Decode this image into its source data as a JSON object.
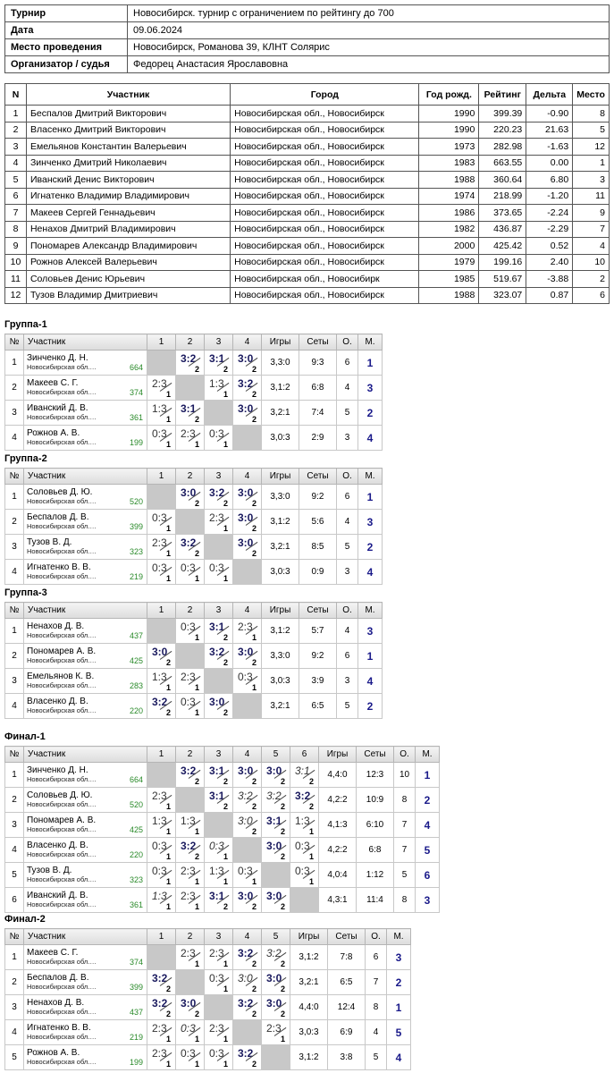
{
  "info": [
    {
      "label": "Турнир",
      "value": "Новосибирск. турнир с ограничением по рейтингу до 700"
    },
    {
      "label": "Дата",
      "value": "09.06.2024"
    },
    {
      "label": "Место проведения",
      "value": "Новосибирск, Романова 39, КЛНТ Солярис"
    },
    {
      "label": "Организатор / судья",
      "value": "Федорец Анастасия Ярославовна"
    }
  ],
  "participants": {
    "headers": [
      "N",
      "Участник",
      "Город",
      "Год рожд.",
      "Рейтинг",
      "Дельта",
      "Место"
    ],
    "rows": [
      [
        "1",
        "Беспалов Дмитрий Викторович",
        "Новосибирская обл., Новосибирск",
        "1990",
        "399.39",
        "-0.90",
        "8"
      ],
      [
        "2",
        "Власенко Дмитрий Викторович",
        "Новосибирская обл., Новосибирск",
        "1990",
        "220.23",
        "21.63",
        "5"
      ],
      [
        "3",
        "Емельянов Константин Валерьевич",
        "Новосибирская обл., Новосибирск",
        "1973",
        "282.98",
        "-1.63",
        "12"
      ],
      [
        "4",
        "Зинченко Дмитрий Николаевич",
        "Новосибирская обл., Новосибирск",
        "1983",
        "663.55",
        "0.00",
        "1"
      ],
      [
        "5",
        "Иванский Денис Викторович",
        "Новосибирская обл., Новосибирск",
        "1988",
        "360.64",
        "6.80",
        "3"
      ],
      [
        "6",
        "Игнатенко Владимир Владимирович",
        "Новосибирская обл., Новосибирск",
        "1974",
        "218.99",
        "-1.20",
        "11"
      ],
      [
        "7",
        "Макеев Сергей Геннадьевич",
        "Новосибирская обл., Новосибирск",
        "1986",
        "373.65",
        "-2.24",
        "9"
      ],
      [
        "8",
        "Ненахов Дмитрий Владимирович",
        "Новосибирская обл., Новосибирск",
        "1982",
        "436.87",
        "-2.29",
        "7"
      ],
      [
        "9",
        "Пономарев Александр Владимирович",
        "Новосибирская обл., Новосибирск",
        "2000",
        "425.42",
        "0.52",
        "4"
      ],
      [
        "10",
        "Рожнов Алексей Валерьевич",
        "Новосибирская обл., Новосибирск",
        "1979",
        "199.16",
        "2.40",
        "10"
      ],
      [
        "11",
        "Соловьев Денис Юрьевич",
        "Новосибирская обл., Новосибирк",
        "1985",
        "519.67",
        "-3.88",
        "2"
      ],
      [
        "12",
        "Тузов Владимир Дмитриевич",
        "Новосибирская обл., Новосибирск",
        "1988",
        "323.07",
        "0.87",
        "6"
      ]
    ]
  },
  "groups": [
    {
      "title": "Группа-1",
      "headers": [
        "№",
        "Участник",
        "1",
        "2",
        "3",
        "4",
        "Игры",
        "Сеты",
        "О.",
        "М."
      ],
      "rows": [
        {
          "num": "1",
          "name": "Зинченко Д. Н.",
          "city": "Новосибирская обл.…",
          "rating": "664",
          "cells": [
            null,
            {
              "s": "3:2",
              "p": "2",
              "t": "w"
            },
            {
              "s": "3:1",
              "p": "2",
              "t": "w"
            },
            {
              "s": "3:0",
              "p": "2",
              "t": "w"
            }
          ],
          "games": "3,3:0",
          "sets": "9:3",
          "pts": "6",
          "place": "1"
        },
        {
          "num": "2",
          "name": "Макеев С. Г.",
          "city": "Новосибирская обл.…",
          "rating": "374",
          "cells": [
            {
              "s": "2:3",
              "p": "1",
              "t": "l"
            },
            null,
            {
              "s": "1:3",
              "p": "1",
              "t": "l"
            },
            {
              "s": "3:2",
              "p": "2",
              "t": "w"
            }
          ],
          "games": "3,1:2",
          "sets": "6:8",
          "pts": "4",
          "place": "3"
        },
        {
          "num": "3",
          "name": "Иванский Д. В.",
          "city": "Новосибирская обл.…",
          "rating": "361",
          "cells": [
            {
              "s": "1:3",
              "p": "1",
              "t": "l"
            },
            {
              "s": "3:1",
              "p": "2",
              "t": "w"
            },
            null,
            {
              "s": "3:0",
              "p": "2",
              "t": "w"
            }
          ],
          "games": "3,2:1",
          "sets": "7:4",
          "pts": "5",
          "place": "2"
        },
        {
          "num": "4",
          "name": "Рожнов А. В.",
          "city": "Новосибирская обл.…",
          "rating": "199",
          "cells": [
            {
              "s": "0:3",
              "p": "1",
              "t": "l"
            },
            {
              "s": "2:3",
              "p": "1",
              "t": "l"
            },
            {
              "s": "0:3",
              "p": "1",
              "t": "l"
            },
            null
          ],
          "games": "3,0:3",
          "sets": "2:9",
          "pts": "3",
          "place": "4"
        }
      ]
    },
    {
      "title": "Группа-2",
      "headers": [
        "№",
        "Участник",
        "1",
        "2",
        "3",
        "4",
        "Игры",
        "Сеты",
        "О.",
        "М."
      ],
      "rows": [
        {
          "num": "1",
          "name": "Соловьев Д. Ю.",
          "city": "Новосибирская обл.…",
          "rating": "520",
          "cells": [
            null,
            {
              "s": "3:0",
              "p": "2",
              "t": "w"
            },
            {
              "s": "3:2",
              "p": "2",
              "t": "w"
            },
            {
              "s": "3:0",
              "p": "2",
              "t": "w"
            }
          ],
          "games": "3,3:0",
          "sets": "9:2",
          "pts": "6",
          "place": "1"
        },
        {
          "num": "2",
          "name": "Беспалов Д. В.",
          "city": "Новосибирская обл.…",
          "rating": "399",
          "cells": [
            {
              "s": "0:3",
              "p": "1",
              "t": "l"
            },
            null,
            {
              "s": "2:3",
              "p": "1",
              "t": "l"
            },
            {
              "s": "3:0",
              "p": "2",
              "t": "w"
            }
          ],
          "games": "3,1:2",
          "sets": "5:6",
          "pts": "4",
          "place": "3"
        },
        {
          "num": "3",
          "name": "Тузов В. Д.",
          "city": "Новосибирская обл.…",
          "rating": "323",
          "cells": [
            {
              "s": "2:3",
              "p": "1",
              "t": "l"
            },
            {
              "s": "3:2",
              "p": "2",
              "t": "w"
            },
            null,
            {
              "s": "3:0",
              "p": "2",
              "t": "w"
            }
          ],
          "games": "3,2:1",
          "sets": "8:5",
          "pts": "5",
          "place": "2"
        },
        {
          "num": "4",
          "name": "Игнатенко В. В.",
          "city": "Новосибирская обл.…",
          "rating": "219",
          "cells": [
            {
              "s": "0:3",
              "p": "1",
              "t": "l"
            },
            {
              "s": "0:3",
              "p": "1",
              "t": "l"
            },
            {
              "s": "0:3",
              "p": "1",
              "t": "l"
            },
            null
          ],
          "games": "3,0:3",
          "sets": "0:9",
          "pts": "3",
          "place": "4"
        }
      ]
    },
    {
      "title": "Группа-3",
      "headers": [
        "№",
        "Участник",
        "1",
        "2",
        "3",
        "4",
        "Игры",
        "Сеты",
        "О.",
        "М."
      ],
      "rows": [
        {
          "num": "1",
          "name": "Ненахов Д. В.",
          "city": "Новосибирская обл.…",
          "rating": "437",
          "cells": [
            null,
            {
              "s": "0:3",
              "p": "1",
              "t": "l"
            },
            {
              "s": "3:1",
              "p": "2",
              "t": "w"
            },
            {
              "s": "2:3",
              "p": "1",
              "t": "l"
            }
          ],
          "games": "3,1:2",
          "sets": "5:7",
          "pts": "4",
          "place": "3"
        },
        {
          "num": "2",
          "name": "Пономарев А. В.",
          "city": "Новосибирская обл.…",
          "rating": "425",
          "cells": [
            {
              "s": "3:0",
              "p": "2",
              "t": "w"
            },
            null,
            {
              "s": "3:2",
              "p": "2",
              "t": "w"
            },
            {
              "s": "3:0",
              "p": "2",
              "t": "w"
            }
          ],
          "games": "3,3:0",
          "sets": "9:2",
          "pts": "6",
          "place": "1"
        },
        {
          "num": "3",
          "name": "Емельянов К. В.",
          "city": "Новосибирская обл.…",
          "rating": "283",
          "cells": [
            {
              "s": "1:3",
              "p": "1",
              "t": "l"
            },
            {
              "s": "2:3",
              "p": "1",
              "t": "l"
            },
            null,
            {
              "s": "0:3",
              "p": "1",
              "t": "l"
            }
          ],
          "games": "3,0:3",
          "sets": "3:9",
          "pts": "3",
          "place": "4"
        },
        {
          "num": "4",
          "name": "Власенко Д. В.",
          "city": "Новосибирская обл.…",
          "rating": "220",
          "cells": [
            {
              "s": "3:2",
              "p": "2",
              "t": "w"
            },
            {
              "s": "0:3",
              "p": "1",
              "t": "l"
            },
            {
              "s": "3:0",
              "p": "2",
              "t": "w"
            },
            null
          ],
          "games": "3,2:1",
          "sets": "6:5",
          "pts": "5",
          "place": "2"
        }
      ]
    },
    {
      "title": "Финал-1",
      "headers": [
        "№",
        "Участник",
        "1",
        "2",
        "3",
        "4",
        "5",
        "6",
        "Игры",
        "Сеты",
        "О.",
        "М."
      ],
      "rows": [
        {
          "num": "1",
          "name": "Зинченко Д. Н.",
          "city": "Новосибирская обл.…",
          "rating": "664",
          "cells": [
            null,
            {
              "s": "3:2",
              "p": "2",
              "t": "w"
            },
            {
              "s": "3:1",
              "p": "2",
              "t": "w"
            },
            {
              "s": "3:0",
              "p": "2",
              "t": "w"
            },
            {
              "s": "3:0",
              "p": "2",
              "t": "w"
            },
            {
              "s": "3:1",
              "p": "2",
              "t": "wt"
            }
          ],
          "games": "4,4:0",
          "sets": "12:3",
          "pts": "10",
          "place": "1"
        },
        {
          "num": "2",
          "name": "Соловьев Д. Ю.",
          "city": "Новосибирская обл.…",
          "rating": "520",
          "cells": [
            {
              "s": "2:3",
              "p": "1",
              "t": "l"
            },
            null,
            {
              "s": "3:1",
              "p": "2",
              "t": "w"
            },
            {
              "s": "3:2",
              "p": "2",
              "t": "wt"
            },
            {
              "s": "3:2",
              "p": "2",
              "t": "wt"
            },
            {
              "s": "3:2",
              "p": "2",
              "t": "w"
            }
          ],
          "games": "4,2:2",
          "sets": "10:9",
          "pts": "8",
          "place": "2"
        },
        {
          "num": "3",
          "name": "Пономарев А. В.",
          "city": "Новосибирская обл.…",
          "rating": "425",
          "cells": [
            {
              "s": "1:3",
              "p": "1",
              "t": "l"
            },
            {
              "s": "1:3",
              "p": "1",
              "t": "l"
            },
            null,
            {
              "s": "3:0",
              "p": "2",
              "t": "wt"
            },
            {
              "s": "3:1",
              "p": "2",
              "t": "w"
            },
            {
              "s": "1:3",
              "p": "1",
              "t": "l"
            }
          ],
          "games": "4,1:3",
          "sets": "6:10",
          "pts": "7",
          "place": "4"
        },
        {
          "num": "4",
          "name": "Власенко Д. В.",
          "city": "Новосибирская обл.…",
          "rating": "220",
          "cells": [
            {
              "s": "0:3",
              "p": "1",
              "t": "l"
            },
            {
              "s": "3:2",
              "p": "2",
              "t": "w"
            },
            {
              "s": "0:3",
              "p": "1",
              "t": "wt"
            },
            null,
            {
              "s": "3:0",
              "p": "2",
              "t": "w"
            },
            {
              "s": "0:3",
              "p": "1",
              "t": "l"
            }
          ],
          "games": "4,2:2",
          "sets": "6:8",
          "pts": "7",
          "place": "5"
        },
        {
          "num": "5",
          "name": "Тузов В. Д.",
          "city": "Новосибирская обл.…",
          "rating": "323",
          "cells": [
            {
              "s": "0:3",
              "p": "1",
              "t": "l"
            },
            {
              "s": "2:3",
              "p": "1",
              "t": "l"
            },
            {
              "s": "1:3",
              "p": "1",
              "t": "l"
            },
            {
              "s": "0:3",
              "p": "1",
              "t": "l"
            },
            null,
            {
              "s": "0:3",
              "p": "1",
              "t": "l"
            }
          ],
          "games": "4,0:4",
          "sets": "1:12",
          "pts": "5",
          "place": "6"
        },
        {
          "num": "6",
          "name": "Иванский Д. В.",
          "city": "Новосибирская обл.…",
          "rating": "361",
          "cells": [
            {
              "s": "1:3",
              "p": "1",
              "t": "wt"
            },
            {
              "s": "2:3",
              "p": "1",
              "t": "l"
            },
            {
              "s": "3:1",
              "p": "2",
              "t": "w"
            },
            {
              "s": "3:0",
              "p": "2",
              "t": "w"
            },
            {
              "s": "3:0",
              "p": "2",
              "t": "w"
            },
            null
          ],
          "games": "4,3:1",
          "sets": "11:4",
          "pts": "8",
          "place": "3"
        }
      ]
    },
    {
      "title": "Финал-2",
      "headers": [
        "№",
        "Участник",
        "1",
        "2",
        "3",
        "4",
        "5",
        "Игры",
        "Сеты",
        "О.",
        "М."
      ],
      "rows": [
        {
          "num": "1",
          "name": "Макеев С. Г.",
          "city": "Новосибирская обл.…",
          "rating": "374",
          "cells": [
            null,
            {
              "s": "2:3",
              "p": "1",
              "t": "l"
            },
            {
              "s": "2:3",
              "p": "1",
              "t": "l"
            },
            {
              "s": "3:2",
              "p": "2",
              "t": "w"
            },
            {
              "s": "3:2",
              "p": "2",
              "t": "wt"
            }
          ],
          "games": "3,1:2",
          "sets": "7:8",
          "pts": "6",
          "place": "3"
        },
        {
          "num": "2",
          "name": "Беспалов Д. В.",
          "city": "Новосибирская обл.…",
          "rating": "399",
          "cells": [
            {
              "s": "3:2",
              "p": "2",
              "t": "w"
            },
            null,
            {
              "s": "0:3",
              "p": "1",
              "t": "l"
            },
            {
              "s": "3:0",
              "p": "2",
              "t": "wt"
            },
            {
              "s": "3:0",
              "p": "2",
              "t": "w"
            }
          ],
          "games": "3,2:1",
          "sets": "6:5",
          "pts": "7",
          "place": "2"
        },
        {
          "num": "3",
          "name": "Ненахов Д. В.",
          "city": "Новосибирская обл.…",
          "rating": "437",
          "cells": [
            {
              "s": "3:2",
              "p": "2",
              "t": "w"
            },
            {
              "s": "3:0",
              "p": "2",
              "t": "w"
            },
            null,
            {
              "s": "3:2",
              "p": "2",
              "t": "w"
            },
            {
              "s": "3:0",
              "p": "2",
              "t": "w"
            }
          ],
          "games": "4,4:0",
          "sets": "12:4",
          "pts": "8",
          "place": "1"
        },
        {
          "num": "4",
          "name": "Игнатенко В. В.",
          "city": "Новосибирская обл.…",
          "rating": "219",
          "cells": [
            {
              "s": "2:3",
              "p": "1",
              "t": "l"
            },
            {
              "s": "0:3",
              "p": "1",
              "t": "wt"
            },
            {
              "s": "2:3",
              "p": "1",
              "t": "l"
            },
            null,
            {
              "s": "2:3",
              "p": "1",
              "t": "l"
            }
          ],
          "games": "3,0:3",
          "sets": "6:9",
          "pts": "4",
          "place": "5"
        },
        {
          "num": "5",
          "name": "Рожнов А. В.",
          "city": "Новосибирская обл.…",
          "rating": "199",
          "cells": [
            {
              "s": "2:3",
              "p": "1",
              "t": "l"
            },
            {
              "s": "0:3",
              "p": "1",
              "t": "l"
            },
            {
              "s": "0:3",
              "p": "1",
              "t": "l"
            },
            {
              "s": "3:2",
              "p": "2",
              "t": "w"
            },
            null
          ],
          "games": "3,1:2",
          "sets": "3:8",
          "pts": "5",
          "place": "4"
        }
      ]
    }
  ]
}
